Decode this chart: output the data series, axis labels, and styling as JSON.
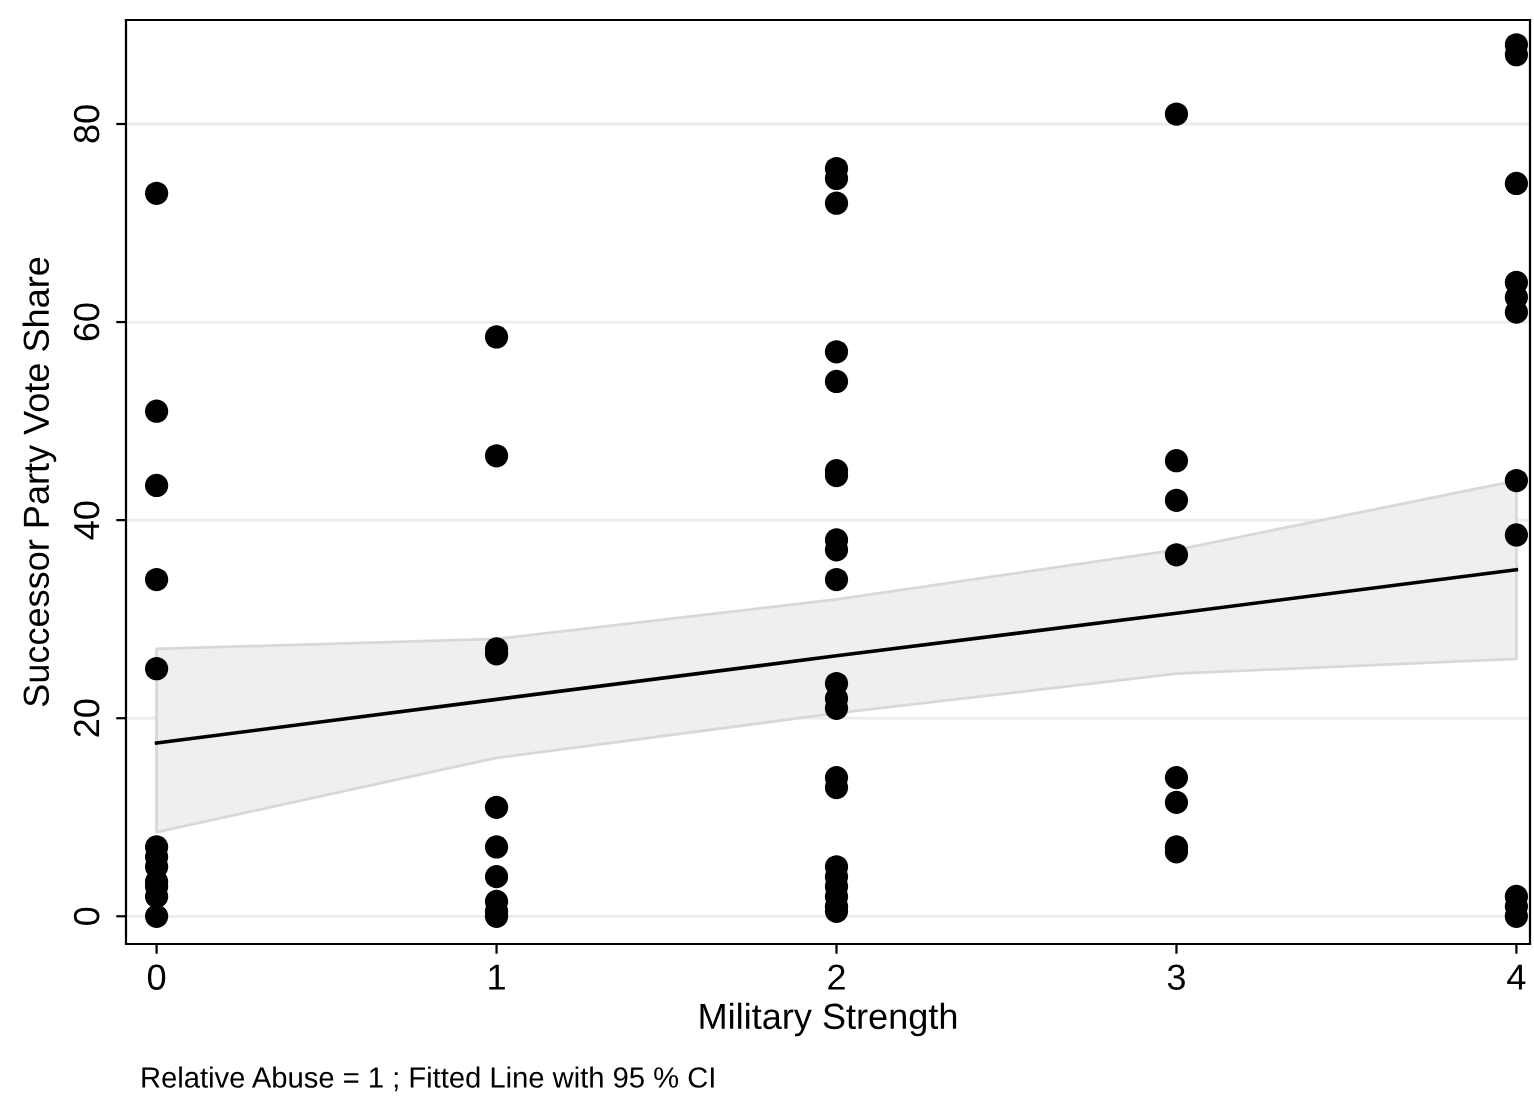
{
  "chart_data": {
    "type": "scatter",
    "xlabel": "Military Strength",
    "ylabel": "Successor Party Vote Share",
    "annotations": [
      "Relative Abuse = 1 ; Fitted Line with 95 % CI"
    ],
    "xlim": [
      -0.09,
      4.04
    ],
    "ylim": [
      -2.8,
      90.5
    ],
    "xticks": [
      0,
      1,
      2,
      3,
      4
    ],
    "yticks": [
      0,
      20,
      40,
      60,
      80
    ],
    "grid": "y",
    "marker": "circle",
    "series": [
      {
        "color": "#000000",
        "x": [
          0,
          0,
          0,
          0,
          0,
          0,
          0,
          0,
          0,
          0,
          0,
          0,
          1,
          1,
          1,
          1,
          1,
          1,
          1,
          1,
          1,
          1,
          2,
          2,
          2,
          2,
          2,
          2,
          2,
          2,
          2,
          2,
          2,
          2,
          2,
          2,
          2,
          2,
          2,
          2,
          2,
          2,
          2,
          3,
          3,
          3,
          3,
          3,
          3,
          3,
          3,
          4,
          4,
          4,
          4,
          4,
          4,
          4,
          4,
          4,
          4,
          4
        ],
        "values": [
          73,
          51,
          43.5,
          34,
          25,
          7,
          6,
          5,
          3.5,
          3,
          2,
          0,
          58.5,
          46.5,
          27,
          26.5,
          11,
          7,
          4,
          1.5,
          0.5,
          0,
          75.5,
          74.5,
          72,
          57,
          54,
          45,
          44.5,
          38,
          37,
          34,
          23.5,
          22,
          21,
          14,
          13,
          5,
          4,
          3,
          2,
          1,
          0.5,
          81,
          46,
          42,
          36.5,
          14,
          11.5,
          7,
          6.5,
          88,
          87,
          74,
          64,
          62.5,
          61,
          44,
          38.5,
          2,
          1,
          0
        ]
      },
      {
        "type": "line",
        "color": "#000000",
        "marker": "none",
        "line_style": "solid",
        "x": [
          0,
          1,
          2,
          3,
          4
        ],
        "values": [
          17.5,
          21.9,
          26.3,
          30.6,
          35
        ],
        "lower": [
          8.5,
          16,
          20.5,
          24.5,
          26
        ],
        "upper": [
          27,
          28,
          32,
          37,
          44
        ]
      }
    ]
  }
}
